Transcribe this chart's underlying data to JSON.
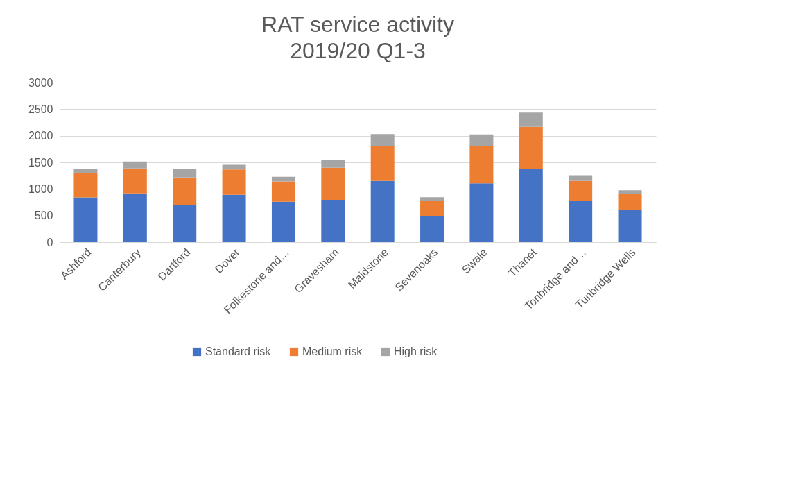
{
  "chart_data": {
    "type": "bar",
    "title": "RAT service activity",
    "subtitle": "2019/20 Q1-3",
    "categories": [
      "Ashford",
      "Canterbury",
      "Dartford",
      "Dover",
      "Folkestone and…",
      "Gravesham",
      "Maidstone",
      "Sevenoaks",
      "Swale",
      "Thanet",
      "Tonbridge and…",
      "Tunbridge Wells"
    ],
    "stacked": true,
    "series": [
      {
        "name": "Standard risk",
        "color": "#4472c4",
        "values": [
          840,
          915,
          705,
          890,
          760,
          795,
          1150,
          490,
          1105,
          1375,
          770,
          605
        ]
      },
      {
        "name": "Medium risk",
        "color": "#ed7d31",
        "values": [
          450,
          470,
          510,
          475,
          380,
          605,
          660,
          280,
          700,
          795,
          380,
          295
        ]
      },
      {
        "name": "High risk",
        "color": "#a5a5a5",
        "values": [
          90,
          130,
          165,
          90,
          90,
          145,
          220,
          75,
          220,
          265,
          110,
          75
        ]
      }
    ],
    "ylim": [
      0,
      3000
    ],
    "yticks": [
      0,
      500,
      1000,
      1500,
      2000,
      2500,
      3000
    ],
    "grid": "y",
    "legend": "bottom"
  }
}
